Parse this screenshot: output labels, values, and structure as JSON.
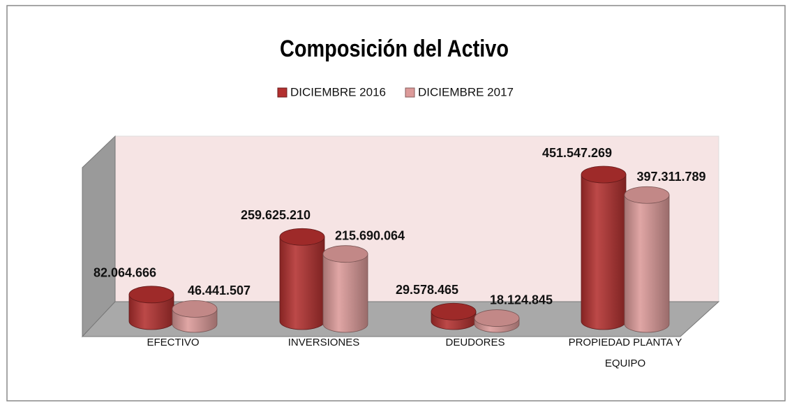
{
  "chart_data": {
    "type": "bar3d",
    "title": "Composición del Activo",
    "categories": [
      "EFECTIVO",
      "INVERSIONES",
      "DEUDORES",
      "PROPIEDAD PLANTA Y EQUIPO"
    ],
    "series": [
      {
        "name": "DICIEMBRE  2016",
        "color": "#b3302f",
        "values": [
          82064666,
          259625210,
          29578465,
          451547269
        ],
        "value_labels": [
          "82.064.666",
          "259.625.210",
          "29.578.465",
          "451.547.269"
        ]
      },
      {
        "name": "DICIEMBRE  2017",
        "color": "#dc9a99",
        "values": [
          46441507,
          215690064,
          18124845,
          397311789
        ],
        "value_labels": [
          "46.441.507",
          "215.690.064",
          "18.124.845",
          "397.311.789"
        ]
      }
    ],
    "legend": "top"
  }
}
